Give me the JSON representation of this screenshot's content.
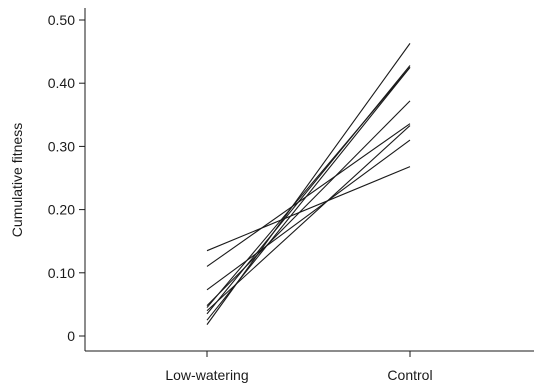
{
  "chart_data": {
    "type": "line",
    "title": "",
    "xlabel": "",
    "ylabel": "Cumulative fitness",
    "categories": [
      "Low-watering",
      "Control"
    ],
    "y_ticks": [
      {
        "value": 0,
        "label": "0"
      },
      {
        "value": 0.1,
        "label": "0.10"
      },
      {
        "value": 0.2,
        "label": "0.20"
      },
      {
        "value": 0.3,
        "label": "0.30"
      },
      {
        "value": 0.4,
        "label": "0.40"
      },
      {
        "value": 0.5,
        "label": "0.50"
      }
    ],
    "ylim": [
      -0.02,
      0.52
    ],
    "grid": false,
    "legend": "none",
    "line_color": "#1a1a1a",
    "series": [
      {
        "values": [
          0.135,
          0.268
        ]
      },
      {
        "values": [
          0.11,
          0.336
        ]
      },
      {
        "values": [
          0.073,
          0.31
        ]
      },
      {
        "values": [
          0.048,
          0.372
        ]
      },
      {
        "values": [
          0.045,
          0.425
        ]
      },
      {
        "values": [
          0.04,
          0.333
        ]
      },
      {
        "values": [
          0.035,
          0.428
        ]
      },
      {
        "values": [
          0.025,
          0.425
        ]
      },
      {
        "values": [
          0.018,
          0.463
        ]
      }
    ]
  }
}
